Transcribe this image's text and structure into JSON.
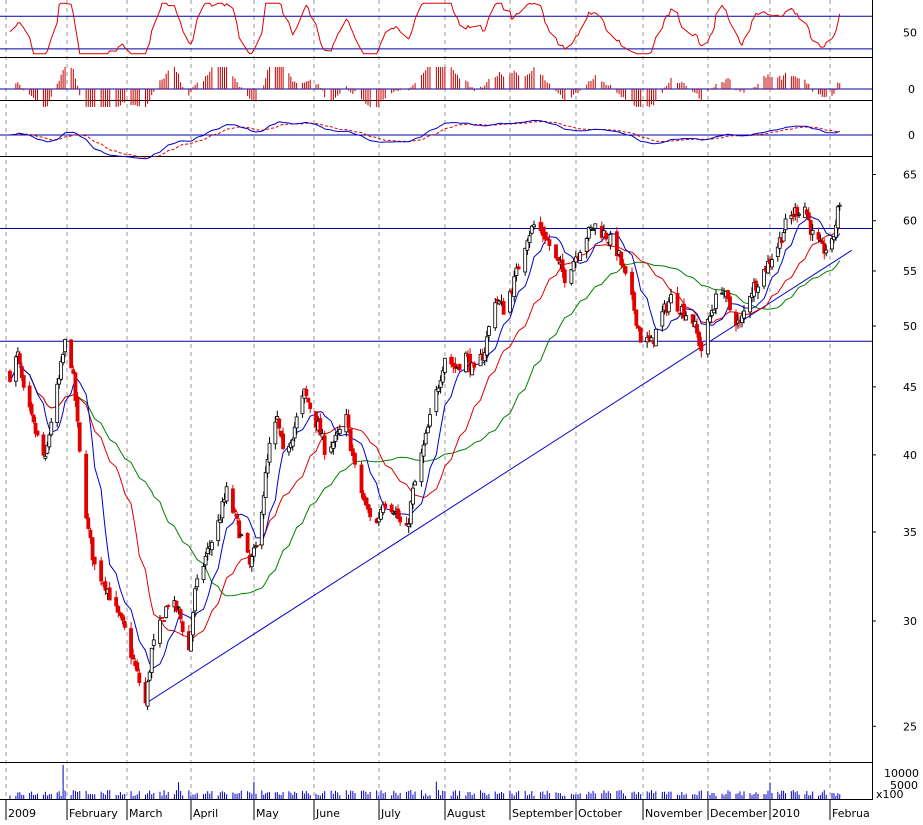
{
  "colors": {
    "up_candle": "#000000",
    "down_candle": "#e00000",
    "ma_short": "#0000cc",
    "ma_mid": "#e00000",
    "ma_long": "#008000",
    "trendline": "#0000cc",
    "level_lines": "#0000aa",
    "rsi_line": "#e00000",
    "macd_hist": "#c00000",
    "macd_signal": "#e00000",
    "macd_line": "#0000cc",
    "grid": "#9a9a9a",
    "volume": "#0000cc"
  },
  "chart_data": {
    "type": "candlestick",
    "x_axis": {
      "labels": [
        "2009",
        "February",
        "March",
        "April",
        "May",
        "June",
        "July",
        "August",
        "September",
        "October",
        "November",
        "December",
        "2010",
        "Februa"
      ]
    },
    "price_axis": {
      "scale": "log",
      "range": [
        23.5,
        67
      ],
      "ticks": [
        25,
        30,
        35,
        40,
        45,
        50,
        55,
        60,
        65
      ]
    },
    "levels": [
      48.7,
      59.2
    ],
    "trendline": {
      "from": [
        "2009-03-09",
        26.0
      ],
      "to": [
        "2010-02-05",
        57.0
      ]
    },
    "rsi": {
      "ticks": [
        50
      ],
      "levels": [
        70,
        30
      ]
    },
    "momentum": {
      "ticks": [
        0
      ]
    },
    "macd": {
      "ticks": [
        0
      ]
    },
    "volume": {
      "ticks": [
        "10000",
        "5000"
      ],
      "unit": "x100"
    },
    "price_path": [
      [
        "2009-01-02",
        46.0
      ],
      [
        "2009-01-06",
        47.5
      ],
      [
        "2009-01-09",
        44.5
      ],
      [
        "2009-01-14",
        42.0
      ],
      [
        "2009-01-20",
        39.5
      ],
      [
        "2009-01-23",
        42.5
      ],
      [
        "2009-01-27",
        45.5
      ],
      [
        "2009-01-30",
        48.5
      ],
      [
        "2009-02-02",
        47.0
      ],
      [
        "2009-02-04",
        44.0
      ],
      [
        "2009-02-06",
        40.0
      ],
      [
        "2009-02-10",
        35.0
      ],
      [
        "2009-02-13",
        33.0
      ],
      [
        "2009-02-18",
        32.0
      ],
      [
        "2009-02-23",
        30.5
      ],
      [
        "2009-02-27",
        29.5
      ],
      [
        "2009-03-03",
        28.0
      ],
      [
        "2009-03-09",
        26.0
      ],
      [
        "2009-03-12",
        28.5
      ],
      [
        "2009-03-17",
        30.0
      ],
      [
        "2009-03-20",
        31.0
      ],
      [
        "2009-03-25",
        30.5
      ],
      [
        "2009-03-30",
        28.5
      ],
      [
        "2009-04-02",
        31.5
      ],
      [
        "2009-04-07",
        33.5
      ],
      [
        "2009-04-13",
        35.5
      ],
      [
        "2009-04-17",
        37.5
      ],
      [
        "2009-04-22",
        35.5
      ],
      [
        "2009-04-28",
        33.0
      ],
      [
        "2009-05-01",
        34.0
      ],
      [
        "2009-05-05",
        37.5
      ],
      [
        "2009-05-08",
        40.5
      ],
      [
        "2009-05-12",
        42.5
      ],
      [
        "2009-05-15",
        40.0
      ],
      [
        "2009-05-20",
        41.5
      ],
      [
        "2009-05-26",
        44.5
      ],
      [
        "2009-05-29",
        43.5
      ],
      [
        "2009-06-02",
        42.0
      ],
      [
        "2009-06-05",
        40.5
      ],
      [
        "2009-06-10",
        41.0
      ],
      [
        "2009-06-15",
        42.5
      ],
      [
        "2009-06-19",
        39.0
      ],
      [
        "2009-06-24",
        36.5
      ],
      [
        "2009-06-29",
        35.5
      ],
      [
        "2009-07-02",
        37.0
      ],
      [
        "2009-07-07",
        36.5
      ],
      [
        "2009-07-10",
        35.5
      ],
      [
        "2009-07-13",
        35.0
      ],
      [
        "2009-07-16",
        37.5
      ],
      [
        "2009-07-21",
        40.5
      ],
      [
        "2009-07-27",
        44.5
      ],
      [
        "2009-07-31",
        47.5
      ],
      [
        "2009-08-05",
        46.5
      ],
      [
        "2009-08-10",
        47.5
      ],
      [
        "2009-08-14",
        46.0
      ],
      [
        "2009-08-19",
        48.0
      ],
      [
        "2009-08-24",
        52.5
      ],
      [
        "2009-08-28",
        51.5
      ],
      [
        "2009-09-02",
        54.0
      ],
      [
        "2009-09-08",
        58.5
      ],
      [
        "2009-09-11",
        59.5
      ],
      [
        "2009-09-16",
        58.5
      ],
      [
        "2009-09-21",
        56.0
      ],
      [
        "2009-09-25",
        54.5
      ],
      [
        "2009-09-30",
        56.5
      ],
      [
        "2009-10-05",
        58.5
      ],
      [
        "2009-10-09",
        59.5
      ],
      [
        "2009-10-14",
        58.5
      ],
      [
        "2009-10-19",
        57.0
      ],
      [
        "2009-10-22",
        55.0
      ],
      [
        "2009-10-27",
        51.5
      ],
      [
        "2009-10-30",
        49.0
      ],
      [
        "2009-11-04",
        48.5
      ],
      [
        "2009-11-09",
        51.0
      ],
      [
        "2009-11-13",
        52.5
      ],
      [
        "2009-11-18",
        51.5
      ],
      [
        "2009-11-23",
        50.5
      ],
      [
        "2009-11-27",
        48.0
      ],
      [
        "2009-12-02",
        51.5
      ],
      [
        "2009-12-07",
        53.5
      ],
      [
        "2009-12-11",
        51.5
      ],
      [
        "2009-12-16",
        50.0
      ],
      [
        "2009-12-21",
        53.0
      ],
      [
        "2009-12-28",
        55.0
      ],
      [
        "2010-01-04",
        57.5
      ],
      [
        "2010-01-08",
        59.5
      ],
      [
        "2010-01-13",
        61.0
      ],
      [
        "2010-01-18",
        61.5
      ],
      [
        "2010-01-22",
        58.5
      ],
      [
        "2010-01-27",
        57.0
      ],
      [
        "2010-02-01",
        57.5
      ],
      [
        "2010-02-05",
        62.0
      ]
    ]
  }
}
